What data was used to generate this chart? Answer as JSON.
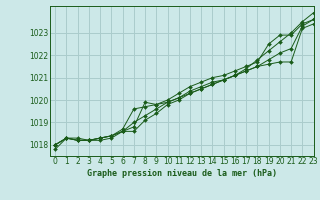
{
  "title": "Graphe pression niveau de la mer (hPa)",
  "background_color": "#cce8e8",
  "grid_color": "#aacccc",
  "line_color": "#1a5c1a",
  "xlabel": "Graphe pression niveau de la mer (hPa)",
  "xlim": [
    -0.5,
    23
  ],
  "ylim": [
    1017.5,
    1024.2
  ],
  "yticks": [
    1018,
    1019,
    1020,
    1021,
    1022,
    1023
  ],
  "xticks": [
    0,
    1,
    2,
    3,
    4,
    5,
    6,
    7,
    8,
    9,
    10,
    11,
    12,
    13,
    14,
    15,
    16,
    17,
    18,
    19,
    20,
    21,
    22,
    23
  ],
  "series": [
    [
      1017.8,
      1018.3,
      1018.3,
      1018.2,
      1018.2,
      1018.3,
      1018.6,
      1018.6,
      1019.1,
      1019.4,
      1019.8,
      1020.0,
      1020.3,
      1020.5,
      1020.7,
      1020.9,
      1021.1,
      1021.4,
      1021.8,
      1022.2,
      1022.6,
      1023.0,
      1023.5,
      1023.9
    ],
    [
      1018.0,
      1018.3,
      1018.2,
      1018.2,
      1018.3,
      1018.4,
      1018.6,
      1019.0,
      1019.3,
      1019.6,
      1019.9,
      1020.1,
      1020.4,
      1020.6,
      1020.8,
      1020.9,
      1021.1,
      1021.3,
      1021.5,
      1021.6,
      1021.7,
      1021.7,
      1023.2,
      1023.4
    ],
    [
      1018.0,
      1018.3,
      1018.2,
      1018.2,
      1018.3,
      1018.4,
      1018.7,
      1019.6,
      1019.7,
      1019.8,
      1019.9,
      1020.1,
      1020.3,
      1020.5,
      1020.7,
      1020.9,
      1021.1,
      1021.3,
      1021.5,
      1021.8,
      1022.1,
      1022.3,
      1023.3,
      1023.6
    ],
    [
      1018.0,
      1018.3,
      1018.2,
      1018.2,
      1018.3,
      1018.4,
      1018.6,
      1018.8,
      1019.9,
      1019.8,
      1020.0,
      1020.3,
      1020.6,
      1020.8,
      1021.0,
      1021.1,
      1021.3,
      1021.5,
      1021.7,
      1022.5,
      1022.9,
      1022.9,
      1023.4,
      1023.6
    ]
  ]
}
